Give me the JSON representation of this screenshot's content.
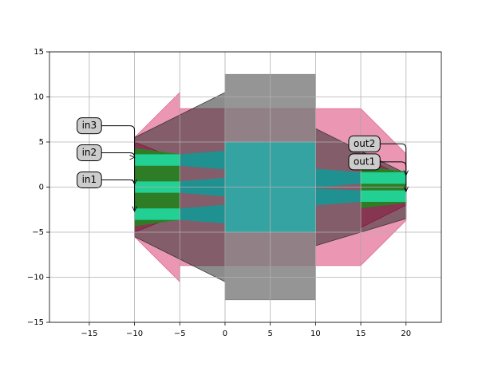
{
  "chart_data": {
    "type": "layout",
    "xlim": [
      -19.4,
      23.9
    ],
    "ylim": [
      -15,
      15
    ],
    "xticks": [
      {
        "value": -15,
        "label": "−15"
      },
      {
        "value": -10,
        "label": "−10"
      },
      {
        "value": -5,
        "label": "−5"
      },
      0,
      5,
      10,
      15,
      20
    ],
    "yticks": [
      {
        "value": -15,
        "label": "−15"
      },
      {
        "value": -10,
        "label": "−10"
      },
      {
        "value": -5,
        "label": "−5"
      },
      0,
      5,
      10,
      15
    ],
    "grid": true,
    "shapes": [
      {
        "color": "#e0608a",
        "opacity": 0.65,
        "points": [
          [
            -10,
            5.5
          ],
          [
            -5,
            10.5
          ],
          [
            -5,
            -10.5
          ],
          [
            -10,
            -5.5
          ]
        ]
      },
      {
        "color": "#e0608a",
        "opacity": 0.65,
        "points": [
          [
            -5,
            8.7
          ],
          [
            15,
            8.7
          ],
          [
            15,
            -8.7
          ],
          [
            -5,
            -8.7
          ]
        ]
      },
      {
        "color": "#e0608a",
        "opacity": 0.65,
        "points": [
          [
            15,
            8.7
          ],
          [
            20,
            3.7
          ],
          [
            20,
            -3.7
          ],
          [
            15,
            -8.7
          ]
        ]
      },
      {
        "color": "#7a7a7a",
        "opacity": 0.8,
        "points": [
          [
            0,
            12.5
          ],
          [
            10,
            12.5
          ],
          [
            10,
            -12.5
          ],
          [
            0,
            -12.5
          ]
        ]
      },
      {
        "color": "#2e2e2e",
        "opacity": 0.55,
        "points": [
          [
            -10,
            5.5
          ],
          [
            0,
            10.5
          ],
          [
            0,
            -10.5
          ],
          [
            -10,
            -5.5
          ]
        ]
      },
      {
        "color": "#2e2e2e",
        "opacity": 0.55,
        "points": [
          [
            10,
            6.5
          ],
          [
            20,
            1.5
          ],
          [
            20,
            -3.5
          ],
          [
            10,
            -6.5
          ]
        ]
      },
      {
        "color": "#8a1038",
        "opacity": 0.5,
        "points": [
          [
            -10,
            5
          ],
          [
            -5,
            3
          ],
          [
            -5,
            -3
          ],
          [
            -10,
            -5
          ]
        ]
      },
      {
        "color": "#8a1038",
        "opacity": 0.5,
        "points": [
          [
            15,
            3.5
          ],
          [
            20,
            1
          ],
          [
            20,
            -2
          ],
          [
            15,
            -4.5
          ]
        ]
      },
      {
        "color": "#1f8a1f",
        "opacity": 0.85,
        "points": [
          [
            -10,
            4.3
          ],
          [
            -5,
            3.6
          ],
          [
            -5,
            -3.6
          ],
          [
            -10,
            -4.3
          ]
        ]
      },
      {
        "color": "#1f8a1f",
        "opacity": 0.85,
        "points": [
          [
            15,
            2.3
          ],
          [
            20,
            1.7
          ],
          [
            20,
            -1.7
          ],
          [
            15,
            -2.3
          ]
        ]
      },
      {
        "color": "#2ca6a6",
        "opacity": 0.9,
        "points": [
          [
            0,
            5
          ],
          [
            10,
            5
          ],
          [
            10,
            -5
          ],
          [
            0,
            -5
          ]
        ]
      },
      {
        "color": "#1a9494",
        "opacity": 0.95,
        "points": [
          [
            -5,
            3.6
          ],
          [
            0,
            4
          ],
          [
            0,
            2
          ],
          [
            -5,
            2.4
          ]
        ]
      },
      {
        "color": "#1a9494",
        "opacity": 0.95,
        "points": [
          [
            -5,
            0.6
          ],
          [
            0,
            1
          ],
          [
            0,
            -1
          ],
          [
            -5,
            -0.6
          ]
        ]
      },
      {
        "color": "#1a9494",
        "opacity": 0.95,
        "points": [
          [
            -5,
            -2.4
          ],
          [
            0,
            -2
          ],
          [
            0,
            -4
          ],
          [
            -5,
            -3.6
          ]
        ]
      },
      {
        "color": "#22d59a",
        "opacity": 0.95,
        "points": [
          [
            -10,
            3.6
          ],
          [
            -5,
            3.6
          ],
          [
            -5,
            2.4
          ],
          [
            -10,
            2.4
          ]
        ]
      },
      {
        "color": "#22d59a",
        "opacity": 0.95,
        "points": [
          [
            -10,
            0.6
          ],
          [
            -5,
            0.6
          ],
          [
            -5,
            -0.6
          ],
          [
            -10,
            -0.6
          ]
        ]
      },
      {
        "color": "#22d59a",
        "opacity": 0.95,
        "points": [
          [
            -10,
            -2.4
          ],
          [
            -5,
            -2.4
          ],
          [
            -5,
            -3.6
          ],
          [
            -10,
            -3.6
          ]
        ]
      },
      {
        "color": "#1a9494",
        "opacity": 0.95,
        "points": [
          [
            10,
            2
          ],
          [
            15,
            1.6
          ],
          [
            15,
            0.4
          ],
          [
            10,
            0
          ]
        ]
      },
      {
        "color": "#1a9494",
        "opacity": 0.95,
        "points": [
          [
            10,
            -0.2
          ],
          [
            15,
            -0.4
          ],
          [
            15,
            -1.6
          ],
          [
            10,
            -2
          ]
        ]
      },
      {
        "color": "#22d59a",
        "opacity": 0.95,
        "points": [
          [
            15,
            1.6
          ],
          [
            20,
            1.6
          ],
          [
            20,
            0.4
          ],
          [
            15,
            0.4
          ]
        ]
      },
      {
        "color": "#22d59a",
        "opacity": 0.95,
        "points": [
          [
            15,
            -0.4
          ],
          [
            20,
            -0.4
          ],
          [
            20,
            -1.6
          ],
          [
            15,
            -1.6
          ]
        ]
      }
    ],
    "annotations": [
      {
        "text": "in3",
        "xy": [
          -10,
          0.3
        ],
        "xytext": [
          -15,
          6.8
        ]
      },
      {
        "text": "in2",
        "xy": [
          -10,
          3.3
        ],
        "xytext": [
          -15,
          3.8
        ]
      },
      {
        "text": "in1",
        "xy": [
          -10,
          -2.7
        ],
        "xytext": [
          -15,
          0.8
        ]
      },
      {
        "text": "out2",
        "xy": [
          20,
          1.3
        ],
        "xytext": [
          15.4,
          4.8
        ]
      },
      {
        "text": "out1",
        "xy": [
          20,
          -0.5
        ],
        "xytext": [
          15.4,
          2.8
        ]
      }
    ]
  }
}
